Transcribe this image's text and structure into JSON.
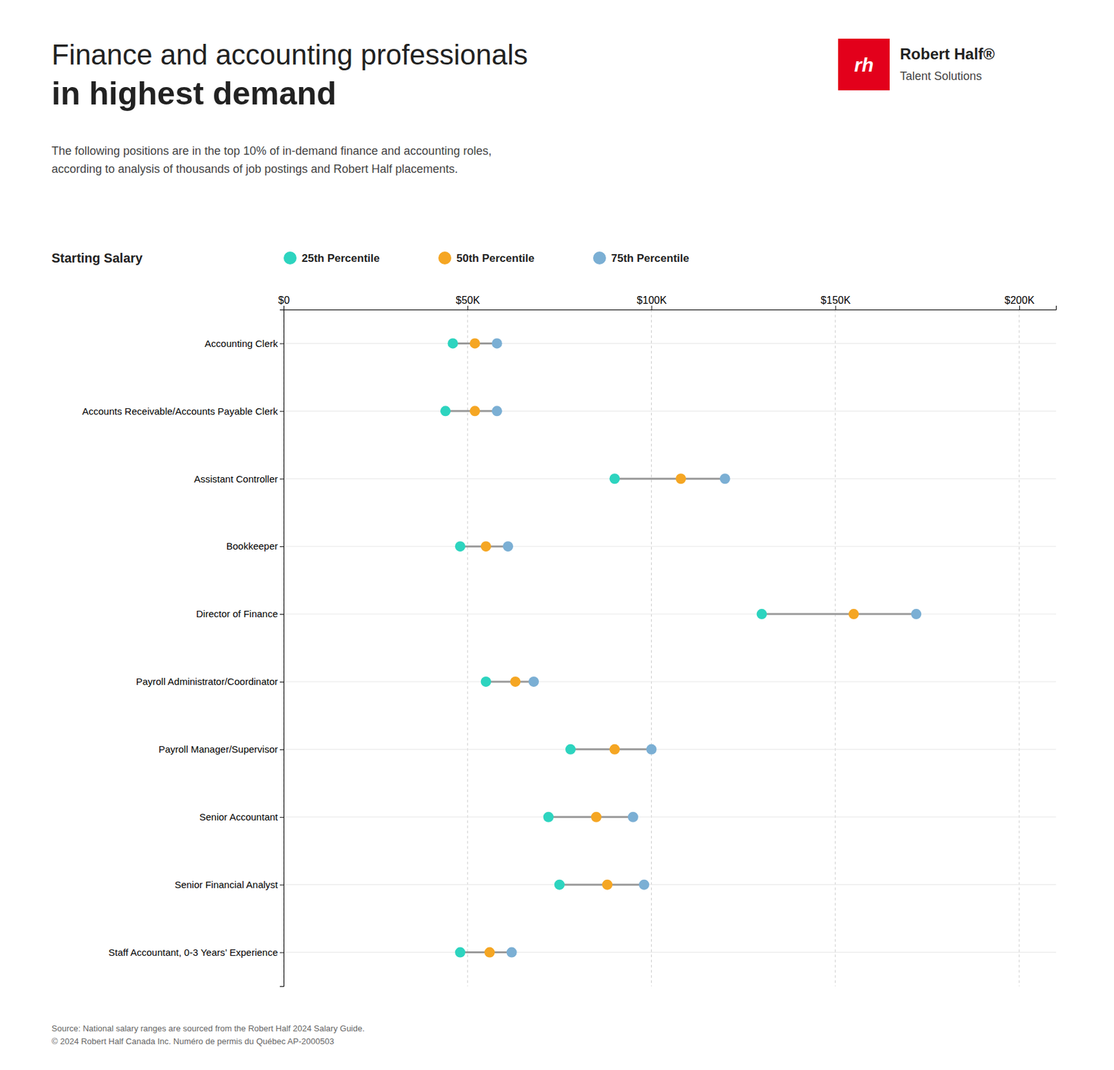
{
  "chart_data": {
    "type": "dumbbell",
    "orientation": "horizontal",
    "title": "Finance and accounting professionals\nin highest demand",
    "subtitle": "The following positions are in the top 10% of in-demand finance and accounting roles,\naccording to analysis of thousands of job postings and Robert Half placements.",
    "xlabel": "Starting Salary",
    "annotations": [
      "rh",
      "Robert Half®",
      "Talent Solutions",
      "Source: National salary ranges are sourced from the Robert Half 2024 Salary Guide.\n© 2024 Robert Half Canada Inc. Numéro de permis du Québec AP-2000503"
    ],
    "categories": [
      "Accounting Clerk",
      "Accounts Receivable/Accounts Payable Clerk",
      "Assistant Controller",
      "Bookkeeper",
      "Director of Finance",
      "Payroll Administrator/Coordinator",
      "Payroll Manager/Supervisor",
      "Senior Accountant",
      "Senior Financial Analyst",
      "Staff Accountant, 0-3 Years’ Experience"
    ],
    "series": [
      {
        "name": "25th Percentile",
        "color": "#2DD4BF",
        "values": [
          46000,
          44000,
          90000,
          48000,
          130000,
          55000,
          78000,
          72000,
          75000,
          48000
        ]
      },
      {
        "name": "50th Percentile",
        "color": "#F5A623",
        "values": [
          52000,
          52000,
          108000,
          55000,
          155000,
          63000,
          90000,
          85000,
          88000,
          56000
        ]
      },
      {
        "name": "75th Percentile",
        "color": "#7BAFD4",
        "values": [
          58000,
          58000,
          120000,
          61000,
          172000,
          68000,
          100000,
          95000,
          98000,
          62000
        ]
      }
    ],
    "xlim": [
      0,
      210000
    ],
    "xticks": [
      {
        "value": 0,
        "label": "$0"
      },
      {
        "value": 50000,
        "label": "$50K"
      },
      {
        "value": 100000,
        "label": "$100K"
      },
      {
        "value": 150000,
        "label": "$150K"
      },
      {
        "value": 200000,
        "label": "$200K"
      }
    ],
    "grid": true,
    "legend": "top"
  }
}
